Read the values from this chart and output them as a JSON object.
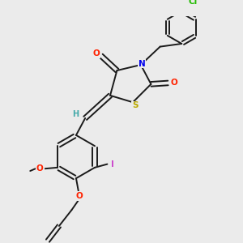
{
  "background_color": "#ebebeb",
  "bond_color": "#1a1a1a",
  "atom_colors": {
    "O": "#ff2200",
    "N": "#0000ee",
    "S": "#bbaa00",
    "Cl": "#22bb00",
    "I": "#cc44cc",
    "H": "#44aaaa",
    "C": "#1a1a1a"
  },
  "figsize": [
    3.0,
    3.0
  ],
  "dpi": 100
}
